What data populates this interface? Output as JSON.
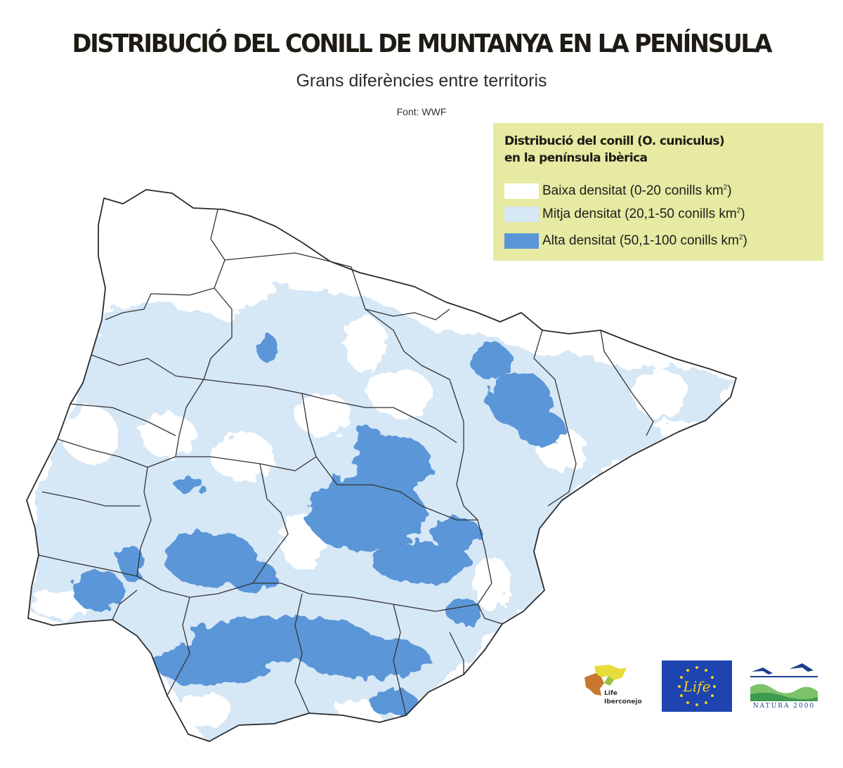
{
  "header": {
    "title": "DISTRIBUCIÓ DEL CONILL DE MUNTANYA EN LA PENÍNSULA",
    "subtitle": "Grans diferències entre territoris",
    "source": "Font: WWF"
  },
  "legend": {
    "title_line1": "Distribució del conill (O. cuniculus)",
    "title_line2": "en la península ibèrica",
    "items": [
      {
        "label": "Baixa densitat (0-20 conills km",
        "unit_sup": "2",
        "suffix": ")",
        "color": "#ffffff"
      },
      {
        "label": "Mitja densitat (20,1-50 conills km",
        "unit_sup": "2",
        "suffix": ")",
        "color": "#d6e7f6"
      },
      {
        "label": "Alta densitat (50,1-100 conills km",
        "unit_sup": "2",
        "suffix": ")",
        "color": "#5a96d8"
      }
    ]
  },
  "colors": {
    "background": "#ffffff",
    "medium_density": "#d6e7f6",
    "high_density": "#5a96d8",
    "borders": "#2a2a2a",
    "legend_box": "#e6eaa2"
  },
  "logos": [
    {
      "name": "life-iberconejo-logo",
      "text_line1": "Life",
      "text_line2": "Iberconejo"
    },
    {
      "name": "eu-life-logo",
      "text": "Life"
    },
    {
      "name": "natura-2000-logo",
      "text": "NATURA 2000"
    }
  ]
}
